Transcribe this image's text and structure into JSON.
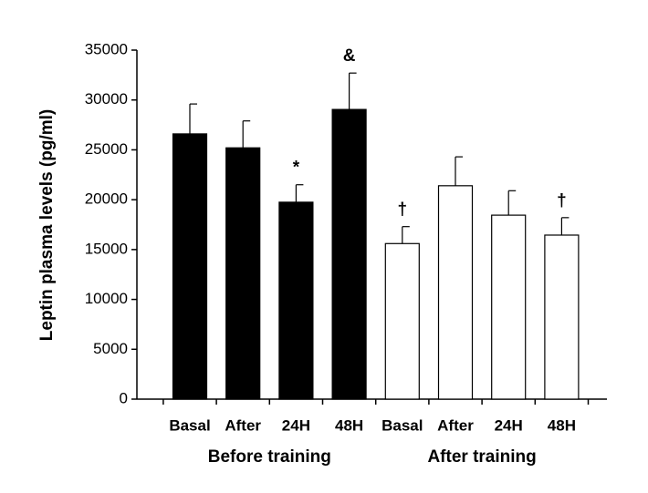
{
  "chart_data": {
    "type": "bar",
    "ylabel": "Leptin plasma levels (pg/ml)",
    "categories": [
      "Basal",
      "After",
      "24H",
      "48H",
      "Basal",
      "After",
      "24H",
      "48H"
    ],
    "groups": [
      "Before training",
      "After training"
    ],
    "values": [
      26600,
      25200,
      19750,
      29050,
      15600,
      21400,
      18450,
      16450
    ],
    "errors": [
      3000,
      2700,
      1750,
      3650,
      1700,
      2900,
      2450,
      1750
    ],
    "colors": [
      "#000000",
      "#000000",
      "#000000",
      "#000000",
      "#ffffff",
      "#ffffff",
      "#ffffff",
      "#ffffff"
    ],
    "annotations": [
      {
        "text": "*",
        "category": 2
      },
      {
        "text": "&",
        "category": 3
      },
      {
        "text": "†",
        "category": 4
      },
      {
        "text": "†",
        "category": 7
      }
    ],
    "ylim": [
      0,
      35000
    ],
    "yticks": [
      0,
      5000,
      10000,
      15000,
      20000,
      25000,
      30000,
      35000
    ]
  }
}
